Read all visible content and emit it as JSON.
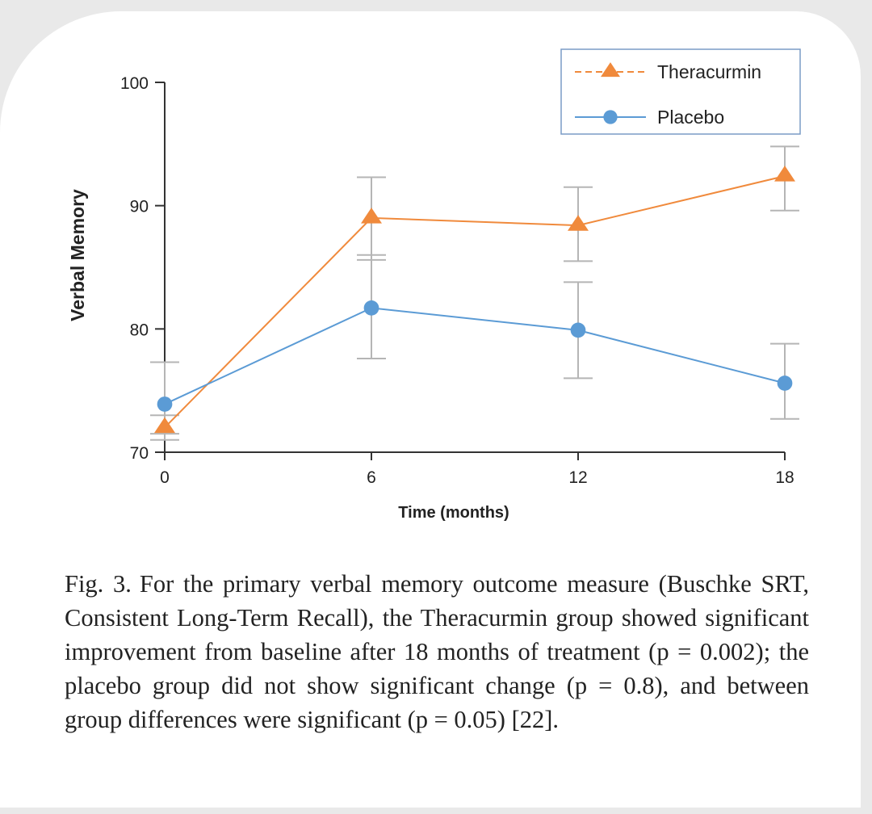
{
  "chart_data": {
    "type": "line",
    "xlabel": "Time (months)",
    "ylabel": "Verbal Memory",
    "x": [
      0,
      6,
      12,
      18
    ],
    "xlim": [
      0,
      18
    ],
    "ylim": [
      70,
      100
    ],
    "yticks": [
      70,
      80,
      90,
      100
    ],
    "grid": false,
    "legend_position": "top-right",
    "series": [
      {
        "name": "Theracurmin",
        "color": "#f08a3c",
        "marker": "triangle",
        "dashed_legend": true,
        "values": [
          72,
          89,
          88.4,
          92.4
        ],
        "err_low": [
          71,
          85.6,
          85.5,
          89.6
        ],
        "err_high": [
          73,
          92.3,
          91.5,
          94.8
        ]
      },
      {
        "name": "Placebo",
        "color": "#5b9bd5",
        "marker": "circle",
        "dashed_legend": false,
        "values": [
          73.9,
          81.7,
          79.9,
          75.6
        ],
        "err_low": [
          71.5,
          77.6,
          76,
          72.7
        ],
        "err_high": [
          77.3,
          86,
          83.8,
          78.8
        ]
      }
    ]
  },
  "caption": {
    "label": "Fig. 3.",
    "text": "For the primary verbal memory outcome measure (Buschke SRT, Consistent Long-Term Recall), the Theracurmin group showed significant improvement from baseline after 18 months of treatment (p = 0.002); the placebo group did not show significant change (p = 0.8), and between group differences were significant (p = 0.05) [22]."
  }
}
